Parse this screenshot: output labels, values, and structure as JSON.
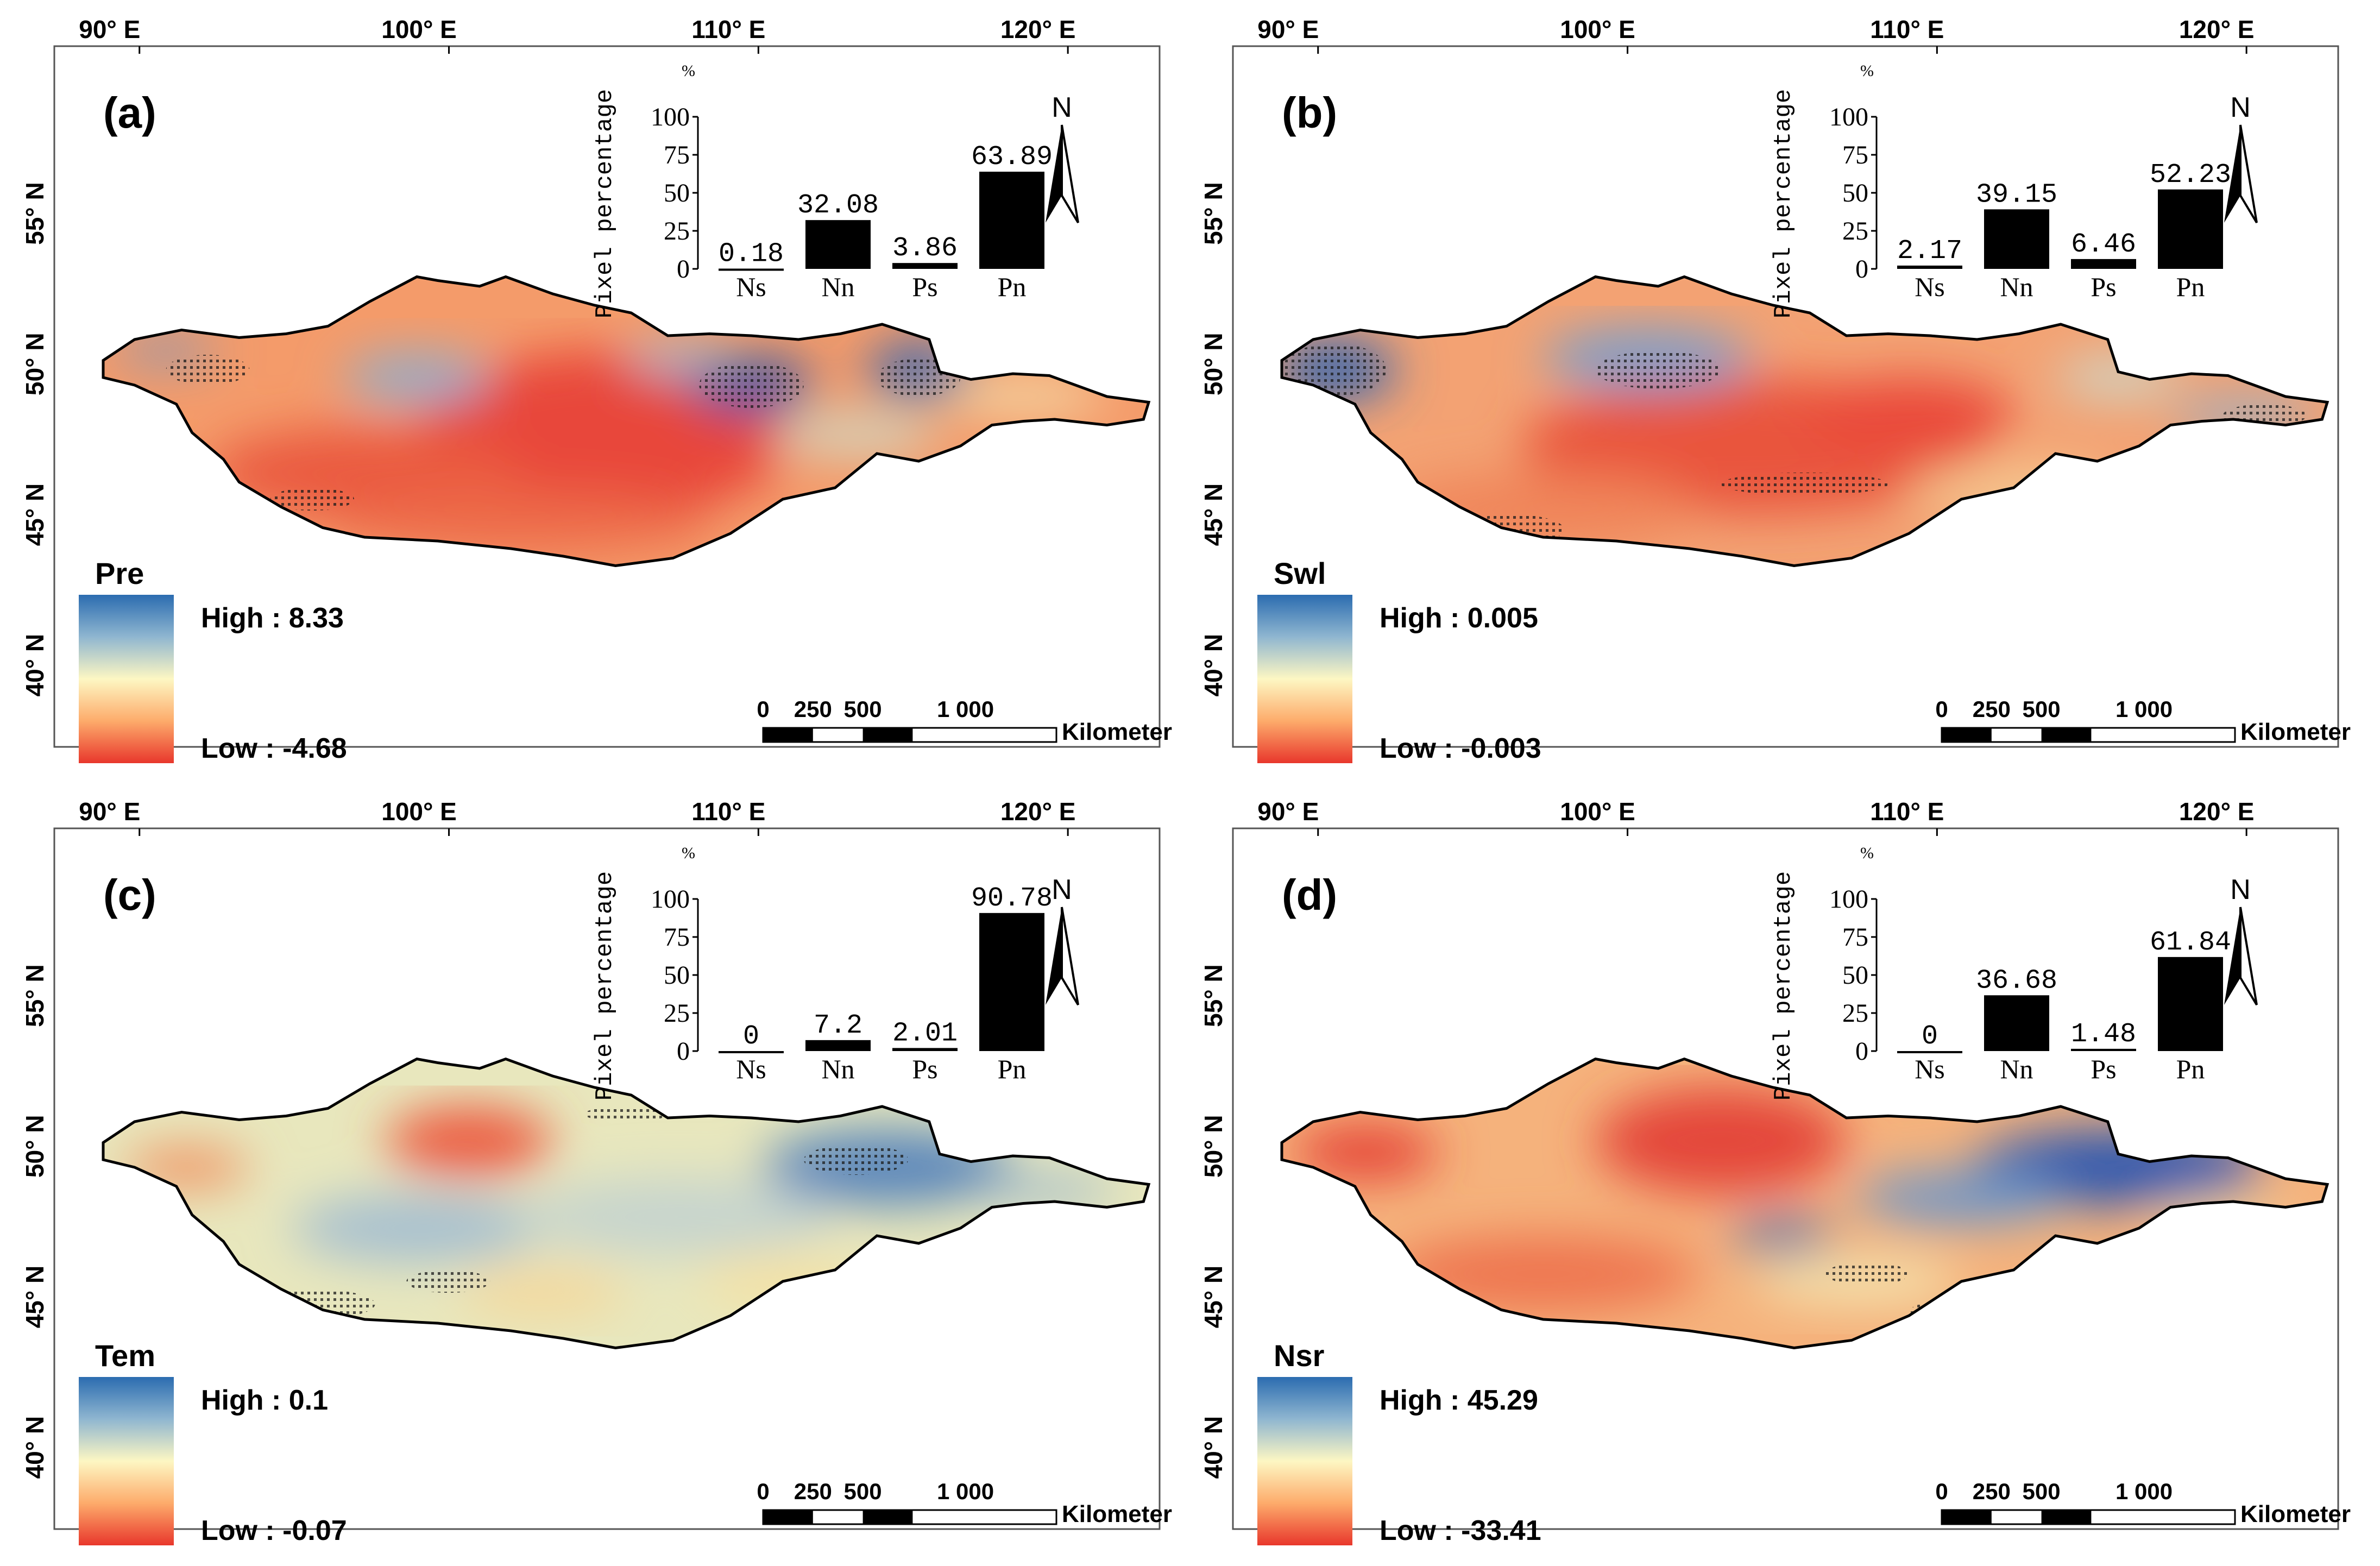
{
  "figure": {
    "longitude_ticks": [
      "90° E",
      "100° E",
      "110° E",
      "120° E"
    ],
    "latitude_ticks": [
      "55° N",
      "50° N",
      "45° N",
      "40° N"
    ],
    "bar_axis_label": "Pixel percentage",
    "bar_axis_unit": "%",
    "bar_y_ticks": [
      "0",
      "25",
      "50",
      "75",
      "100"
    ],
    "north_label": "N",
    "scale_ticks": [
      "0",
      "250",
      "500",
      "1 000"
    ],
    "scale_unit": "Kilometer",
    "colors": {
      "high": "#2166ac",
      "mid": "#fdf7c3",
      "low": "#e8372c",
      "bar": "#000000",
      "stipple": "#222222"
    }
  },
  "panels": [
    {
      "label": "(a)",
      "variable": "Pre",
      "high_text": "High : 8.33",
      "low_text": "Low : -4.68",
      "pattern": "a"
    },
    {
      "label": "(b)",
      "variable": "Swl",
      "high_text": "High : 0.005",
      "low_text": "Low : -0.003",
      "pattern": "b"
    },
    {
      "label": "(c)",
      "variable": "Tem",
      "high_text": "High : 0.1",
      "low_text": "Low : -0.07",
      "pattern": "c"
    },
    {
      "label": "(d)",
      "variable": "Nsr",
      "high_text": "High : 45.29",
      "low_text": "Low : -33.41",
      "pattern": "d"
    }
  ],
  "chart_data": [
    {
      "type": "bar",
      "title": "(a) Pre",
      "ylabel": "Pixel percentage",
      "yunit": "%",
      "categories": [
        "Ns",
        "Nn",
        "Ps",
        "Pn"
      ],
      "values": [
        0.18,
        32.08,
        3.86,
        63.89
      ],
      "value_labels": [
        "0.18",
        "32.08",
        "3.86",
        "63.89"
      ],
      "ylim": [
        0,
        100
      ]
    },
    {
      "type": "bar",
      "title": "(b) Swl",
      "ylabel": "Pixel percentage",
      "yunit": "%",
      "categories": [
        "Ns",
        "Nn",
        "Ps",
        "Pn"
      ],
      "values": [
        2.17,
        39.15,
        6.46,
        52.23
      ],
      "value_labels": [
        "2.17",
        "39.15",
        "6.46",
        "52.23"
      ],
      "ylim": [
        0,
        100
      ]
    },
    {
      "type": "bar",
      "title": "(c) Tem",
      "ylabel": "Pixel percentage",
      "yunit": "%",
      "categories": [
        "Ns",
        "Nn",
        "Ps",
        "Pn"
      ],
      "values": [
        0,
        7.2,
        2.01,
        90.78
      ],
      "value_labels": [
        "0",
        "7.2",
        "2.01",
        "90.78"
      ],
      "ylim": [
        0,
        100
      ]
    },
    {
      "type": "bar",
      "title": "(d) Nsr",
      "ylabel": "Pixel percentage",
      "yunit": "%",
      "categories": [
        "Ns",
        "Nn",
        "Ps",
        "Pn"
      ],
      "values": [
        0,
        36.68,
        1.48,
        61.84
      ],
      "value_labels": [
        "0",
        "36.68",
        "1.48",
        "61.84"
      ],
      "ylim": [
        0,
        100
      ]
    }
  ]
}
